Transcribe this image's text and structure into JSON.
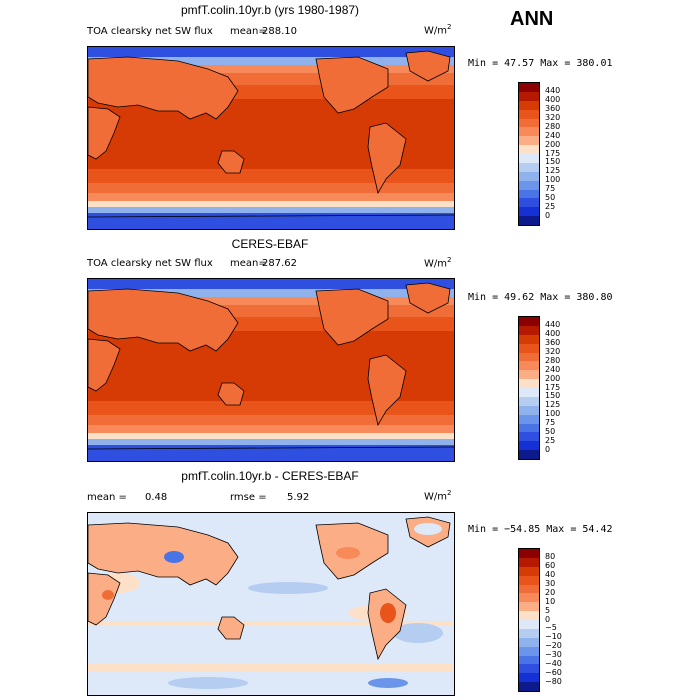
{
  "season": "ANN",
  "panels": [
    {
      "title": "pmfT.colin.10yr.b (yrs 1980-1987)",
      "variable": "TOA clearsky net SW flux",
      "stat_label": "mean=",
      "stat_value": "288.10",
      "units": "W/m",
      "units_sup": "2",
      "minmax": "Min =  47.57 Max = 380.01",
      "colorbar": {
        "labels": [
          "440",
          "400",
          "360",
          "320",
          "280",
          "240",
          "200",
          "175",
          "150",
          "125",
          "100",
          "75",
          "50",
          "25",
          "0"
        ],
        "colors": [
          "#8b0000",
          "#b51a00",
          "#d63a05",
          "#e8541a",
          "#f16d38",
          "#f78a58",
          "#fbae86",
          "#fde0c8",
          "#dde9f8",
          "#b4cdf0",
          "#8fb2ec",
          "#6a95ea",
          "#4a74e6",
          "#2e4fe0",
          "#1530d4",
          "#0c1a8c"
        ]
      }
    },
    {
      "title": "CERES-EBAF",
      "variable": "TOA clearsky net SW flux",
      "stat_label": "mean=",
      "stat_value": "287.62",
      "units": "W/m",
      "units_sup": "2",
      "minmax": "Min =  49.62 Max = 380.80",
      "colorbar": {
        "labels": [
          "440",
          "400",
          "360",
          "320",
          "280",
          "240",
          "200",
          "175",
          "150",
          "125",
          "100",
          "75",
          "50",
          "25",
          "0"
        ],
        "colors": [
          "#8b0000",
          "#b51a00",
          "#d63a05",
          "#e8541a",
          "#f16d38",
          "#f78a58",
          "#fbae86",
          "#fde0c8",
          "#dde9f8",
          "#b4cdf0",
          "#8fb2ec",
          "#6a95ea",
          "#4a74e6",
          "#2e4fe0",
          "#1530d4",
          "#0c1a8c"
        ]
      }
    },
    {
      "title": "pmfT.colin.10yr.b - CERES-EBAF",
      "stat_label": "mean =",
      "stat_value": "0.48",
      "rmse_label": "rmse =",
      "rmse_value": "5.92",
      "units": "W/m",
      "units_sup": "2",
      "minmax": "Min = −54.85 Max =  54.42",
      "colorbar": {
        "labels": [
          "80",
          "60",
          "40",
          "30",
          "20",
          "10",
          "5",
          "0",
          "−5",
          "−10",
          "−20",
          "−30",
          "−40",
          "−60",
          "−80"
        ],
        "colors": [
          "#8b0000",
          "#b51a00",
          "#d63a05",
          "#e8541a",
          "#f16d38",
          "#f78a58",
          "#fbae86",
          "#fde0c8",
          "#dde9f8",
          "#b4cdf0",
          "#8fb2ec",
          "#6a95ea",
          "#4a74e6",
          "#2e4fe0",
          "#1530d4",
          "#0c1a8c"
        ]
      }
    }
  ]
}
